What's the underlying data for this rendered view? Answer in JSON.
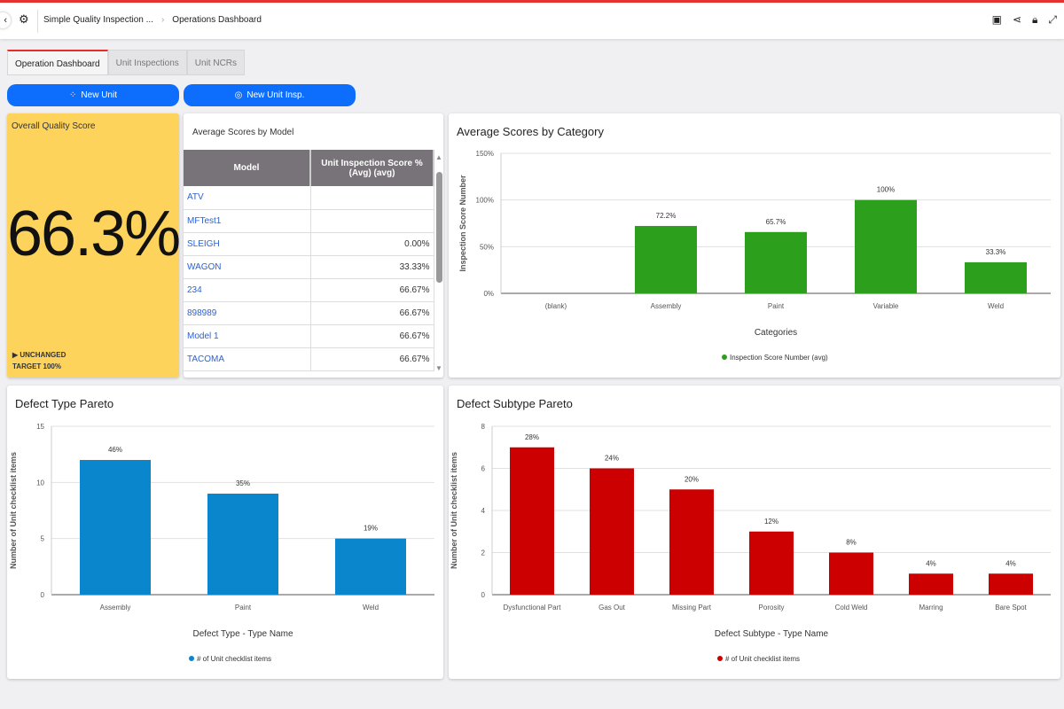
{
  "header": {
    "breadcrumb_app": "Simple Quality Inspection ...",
    "breadcrumb_page": "Operations Dashboard"
  },
  "tabs": [
    "Operation Dashboard",
    "Unit Inspections",
    "Unit NCRs"
  ],
  "buttons": {
    "new_unit": "New Unit",
    "new_unit_insp": "New Unit Insp."
  },
  "score": {
    "title": "Overall Quality Score",
    "value": "66.3%",
    "status": "UNCHANGED",
    "target": "TARGET 100%"
  },
  "table": {
    "title": "Average Scores by Model",
    "headers": [
      "Model",
      "Unit Inspection Score % (Avg) (avg)"
    ],
    "rows": [
      [
        "ATV",
        ""
      ],
      [
        "MFTest1",
        ""
      ],
      [
        "SLEIGH",
        "0.00%"
      ],
      [
        "WAGON",
        "33.33%"
      ],
      [
        "234",
        "66.67%"
      ],
      [
        "898989",
        "66.67%"
      ],
      [
        "Model 1",
        "66.67%"
      ],
      [
        "TACOMA",
        "66.67%"
      ]
    ]
  },
  "colors": {
    "green": "#2ca01c",
    "blue": "#0a86cd",
    "red": "#cc0000",
    "accent": "#0d6efd"
  },
  "chart_data": [
    {
      "type": "bar",
      "title": "Average Scores by Category",
      "xlabel": "Categories",
      "ylabel": "Inspection Score Number",
      "categories": [
        "(blank)",
        "Assembly",
        "Paint",
        "Variable",
        "Weld"
      ],
      "values": [
        null,
        72.2,
        65.7,
        100,
        33.3
      ],
      "labels": [
        "",
        "72.2%",
        "65.7%",
        "100%",
        "33.3%"
      ],
      "yticks": [
        "0%",
        "50%",
        "100%",
        "150%"
      ],
      "ylim": [
        0,
        150
      ],
      "legend": "Inspection Score Number (avg)",
      "legend_position": "bottom",
      "color": "#2ca01c"
    },
    {
      "type": "bar",
      "title": "Defect Type Pareto",
      "xlabel": "Defect Type - Type Name",
      "ylabel": "Number of Unit checklist items",
      "categories": [
        "Assembly",
        "Paint",
        "Weld"
      ],
      "values": [
        12,
        9,
        5
      ],
      "labels": [
        "46%",
        "35%",
        "19%"
      ],
      "yticks": [
        "0",
        "5",
        "10",
        "15"
      ],
      "ylim": [
        0,
        15
      ],
      "legend": "# of Unit checklist items",
      "legend_position": "bottom",
      "color": "#0a86cd"
    },
    {
      "type": "bar",
      "title": "Defect Subtype Pareto",
      "xlabel": "Defect Subtype - Type Name",
      "ylabel": "Number of Unit checklist items",
      "categories": [
        "Dysfunctional Part",
        "Gas Out",
        "Missing Part",
        "Porosity",
        "Cold Weld",
        "Marring",
        "Bare Spot"
      ],
      "values": [
        7,
        6,
        5,
        3,
        2,
        1,
        1
      ],
      "labels": [
        "28%",
        "24%",
        "20%",
        "12%",
        "8%",
        "4%",
        "4%"
      ],
      "yticks": [
        "0",
        "2",
        "4",
        "6",
        "8"
      ],
      "ylim": [
        0,
        8
      ],
      "legend": "# of Unit checklist items",
      "legend_position": "bottom",
      "color": "#cc0000"
    }
  ]
}
